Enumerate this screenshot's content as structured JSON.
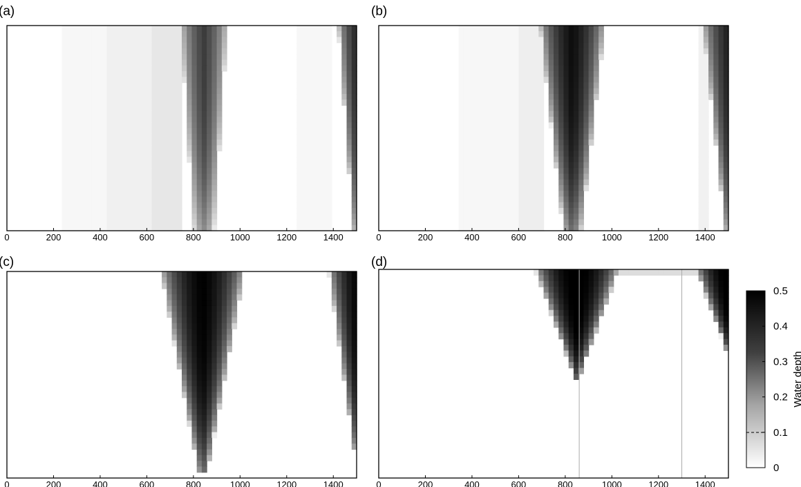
{
  "chart_data": [
    {
      "type": "heatmap",
      "panel_label": "(a)",
      "xlabel": "",
      "ylabel": "",
      "xlim": [
        0,
        1500
      ],
      "xticks": [
        "0",
        "200",
        "400",
        "600",
        "800",
        "1000",
        "1200",
        "1400"
      ],
      "ylim": [
        0,
        1
      ],
      "colorscale": "grayscale (white = 0, black = 0.5)",
      "background_bands": [
        {
          "x": [
            230,
            430
          ],
          "value": 0.012
        },
        {
          "x": [
            430,
            630
          ],
          "value": 0.022
        },
        {
          "x": [
            630,
            740
          ],
          "value": 0.035
        },
        {
          "x": [
            1250,
            1400
          ],
          "value": 0.012
        }
      ],
      "wedges": [
        {
          "center": 845,
          "half_width_top": 100,
          "half_width_bottom": 45,
          "y_extent": 0.99,
          "peak": 0.33
        },
        {
          "center": 1500,
          "half_width_top": 80,
          "half_width_bottom": 15,
          "y_extent": 0.99,
          "peak": 0.38
        }
      ]
    },
    {
      "type": "heatmap",
      "panel_label": "(b)",
      "xlabel": "",
      "ylabel": "",
      "xlim": [
        0,
        1500
      ],
      "xticks": [
        "0",
        "200",
        "400",
        "600",
        "800",
        "1000",
        "1200",
        "1400"
      ],
      "ylim": [
        0,
        1
      ],
      "colorscale": "grayscale (white = 0, black = 0.5)",
      "background_bands": [
        {
          "x": [
            350,
            600
          ],
          "value": 0.012
        },
        {
          "x": [
            600,
            700
          ],
          "value": 0.025
        },
        {
          "x": [
            1380,
            1420
          ],
          "value": 0.02
        }
      ],
      "wedges": [
        {
          "center": 830,
          "half_width_top": 140,
          "half_width_bottom": 40,
          "y_extent": 0.99,
          "peak": 0.45
        },
        {
          "center": 1500,
          "half_width_top": 110,
          "half_width_bottom": 15,
          "y_extent": 0.99,
          "peak": 0.4
        }
      ]
    },
    {
      "type": "heatmap",
      "panel_label": "(c)",
      "xlabel": "",
      "ylabel": "",
      "xlim": [
        0,
        1500
      ],
      "xticks": [
        "0",
        "200",
        "400",
        "600",
        "800",
        "1000",
        "1200",
        "1400"
      ],
      "ylim": [
        0,
        1
      ],
      "colorscale": "grayscale (white = 0, black = 0.5)",
      "background_bands": [],
      "wedges": [
        {
          "center": 840,
          "half_width_top": 180,
          "half_width_bottom": 20,
          "y_extent": 0.97,
          "peak": 0.5
        },
        {
          "center": 1500,
          "half_width_top": 120,
          "half_width_bottom": 10,
          "y_extent": 0.88,
          "peak": 0.48
        }
      ]
    },
    {
      "type": "heatmap",
      "panel_label": "(d)",
      "xlabel": "",
      "ylabel": "",
      "xlim": [
        0,
        1500
      ],
      "xticks": [
        "0",
        "200",
        "400",
        "600",
        "800",
        "1000",
        "1200",
        "1400"
      ],
      "ylim": [
        0,
        1
      ],
      "colorscale": "grayscale (white = 0, black = 0.5)",
      "background_bands": [],
      "top_strip": {
        "x": [
          1000,
          1450
        ],
        "value": 0.05
      },
      "vertical_lines": [
        860,
        1300
      ],
      "wedges": [
        {
          "center": 850,
          "half_width_top": 180,
          "half_width_bottom": 10,
          "y_extent": 0.52,
          "peak": 0.55
        },
        {
          "center": 1500,
          "half_width_top": 140,
          "half_width_bottom": 5,
          "y_extent": 0.4,
          "peak": 0.55
        }
      ]
    }
  ],
  "colorbar": {
    "title": "Water depth",
    "ticks": [
      "0",
      "0.1",
      "0.2",
      "0.3",
      "0.4",
      "0.5"
    ],
    "min": 0,
    "max": 0.5
  }
}
